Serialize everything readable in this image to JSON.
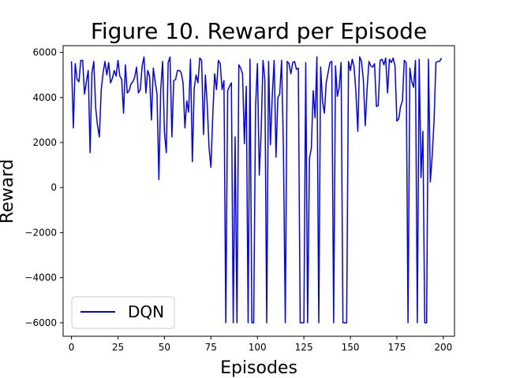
{
  "chart_data": {
    "type": "line",
    "title": "Figure 10. Reward per Episode",
    "xlabel": "Episodes",
    "ylabel": "Reward",
    "xlim": [
      -4.5,
      206
    ],
    "ylim": [
      -6600,
      6300
    ],
    "xticks": [
      0,
      25,
      50,
      75,
      100,
      125,
      150,
      175,
      200
    ],
    "yticks": [
      -6000,
      -4000,
      -2000,
      0,
      2000,
      4000,
      6000
    ],
    "ytick_labels": [
      "−6000",
      "−4000",
      "−2000",
      "0",
      "2000",
      "4000",
      "6000"
    ],
    "legend": {
      "position": "lower-left",
      "entries": [
        "DQN"
      ]
    },
    "series": [
      {
        "name": "DQN",
        "color": "#0000ff",
        "x": [
          0,
          1,
          2,
          3,
          4,
          5,
          6,
          7,
          8,
          9,
          10,
          11,
          12,
          13,
          14,
          15,
          16,
          17,
          18,
          19,
          20,
          21,
          22,
          23,
          24,
          25,
          26,
          27,
          28,
          29,
          30,
          31,
          32,
          33,
          34,
          35,
          36,
          37,
          38,
          39,
          40,
          41,
          42,
          43,
          44,
          45,
          46,
          47,
          48,
          49,
          50,
          51,
          52,
          53,
          54,
          55,
          56,
          57,
          58,
          59,
          60,
          61,
          62,
          63,
          64,
          65,
          66,
          67,
          68,
          69,
          70,
          71,
          72,
          73,
          74,
          75,
          76,
          77,
          78,
          79,
          80,
          81,
          82,
          83,
          84,
          85,
          86,
          87,
          88,
          89,
          90,
          91,
          92,
          93,
          94,
          95,
          96,
          97,
          98,
          99,
          100,
          101,
          102,
          103,
          104,
          105,
          106,
          107,
          108,
          109,
          110,
          111,
          112,
          113,
          114,
          115,
          116,
          117,
          118,
          119,
          120,
          121,
          122,
          123,
          124,
          125,
          126,
          127,
          128,
          129,
          130,
          131,
          132,
          133,
          134,
          135,
          136,
          137,
          138,
          139,
          140,
          141,
          142,
          143,
          144,
          145,
          146,
          147,
          148,
          149,
          150,
          151,
          152,
          153,
          154,
          155,
          156,
          157,
          158,
          159,
          160,
          161,
          162,
          163,
          164,
          165,
          166,
          167,
          168,
          169,
          170,
          171,
          172,
          173,
          174,
          175,
          176,
          177,
          178,
          179,
          180,
          181,
          182,
          183,
          184,
          185,
          186,
          187,
          188,
          189,
          190,
          191,
          192,
          193,
          194,
          195,
          196,
          197,
          198,
          199
        ],
        "values": [
          5600,
          2650,
          5500,
          4800,
          4700,
          5650,
          5650,
          4150,
          4700,
          5200,
          1550,
          5100,
          5600,
          3550,
          2750,
          2250,
          4350,
          5100,
          5600,
          5000,
          5550,
          4650,
          4850,
          5200,
          4950,
          5650,
          4950,
          4800,
          3300,
          5450,
          4200,
          4300,
          4600,
          4700,
          4900,
          5350,
          4200,
          4350,
          5400,
          5800,
          4200,
          5200,
          4950,
          3000,
          5300,
          4700,
          4150,
          350,
          4350,
          5600,
          2450,
          1550,
          5550,
          5800,
          2250,
          4750,
          4800,
          5200,
          5200,
          5100,
          4650,
          2650,
          3850,
          3350,
          5700,
          1150,
          4400,
          5000,
          4650,
          5750,
          5650,
          2350,
          5000,
          3700,
          1750,
          900,
          3250,
          5050,
          4350,
          5650,
          5500,
          4350,
          4750,
          -6000,
          4300,
          4500,
          4650,
          -6000,
          2250,
          -6000,
          5450,
          5300,
          5050,
          1950,
          4500,
          -6000,
          5700,
          -6000,
          -6000,
          3600,
          5500,
          550,
          2450,
          5650,
          4800,
          -6000,
          5600,
          1900,
          4100,
          5650,
          1350,
          4000,
          4150,
          5650,
          1700,
          -6000,
          5600,
          5500,
          5050,
          5550,
          5600,
          5250,
          5300,
          -6000,
          -6000,
          -6000,
          5550,
          -6000,
          1300,
          1750,
          4300,
          3100,
          5800,
          -6000,
          5350,
          3850,
          3300,
          4650,
          5100,
          5550,
          5600,
          -6000,
          5400,
          4050,
          4450,
          5550,
          -6000,
          -6000,
          -6000,
          5600,
          5200,
          5700,
          5350,
          4200,
          2500,
          5800,
          5600,
          4750,
          2750,
          4400,
          5600,
          5400,
          5350,
          5500,
          3600,
          3650,
          5650,
          5700,
          5450,
          5750,
          4200,
          5700,
          5550,
          5750,
          5400,
          2950,
          3050,
          3600,
          3850,
          5650,
          5550,
          -6000,
          5300,
          4700,
          4450,
          5650,
          -6000,
          5700,
          450,
          2500,
          -6000,
          -6000,
          5700,
          250,
          1400,
          2950,
          5550,
          5600,
          5600,
          5750
        ]
      }
    ]
  }
}
